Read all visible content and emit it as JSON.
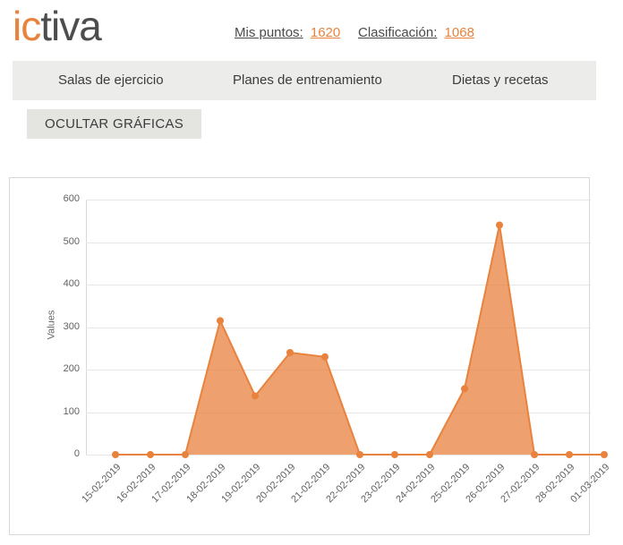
{
  "header": {
    "logo_ic": "ic",
    "logo_tiva": "tiva",
    "points_label": "Mis puntos:",
    "points_value": "1620",
    "rank_label": "Clasificación:",
    "rank_value": "1068"
  },
  "nav": {
    "items": [
      {
        "label": "Salas de ejercicio"
      },
      {
        "label": "Planes de entrenamiento"
      },
      {
        "label": "Dietas y recetas"
      }
    ]
  },
  "toolbar": {
    "hide_charts_label": "OCULTAR GRÁFICAS"
  },
  "chart_data": {
    "type": "area",
    "title": "",
    "xlabel": "",
    "ylabel": "Values",
    "ylim": [
      0,
      600
    ],
    "ytick_interval": 100,
    "grid": true,
    "legend": false,
    "categories": [
      "15-02-2019",
      "16-02-2019",
      "17-02-2019",
      "18-02-2019",
      "19-02-2019",
      "20-02-2019",
      "21-02-2019",
      "22-02-2019",
      "23-02-2019",
      "24-02-2019",
      "25-02-2019",
      "26-02-2019",
      "27-02-2019",
      "28-02-2019",
      "01-03-2019"
    ],
    "values": [
      0,
      0,
      0,
      315,
      138,
      240,
      230,
      0,
      0,
      0,
      155,
      540,
      0,
      0,
      0
    ],
    "colors": {
      "line": "#e8823d",
      "fill": "#e8823d",
      "fill_opacity": 0.75,
      "marker": "#e8823d",
      "accent": "#e8823d"
    }
  }
}
